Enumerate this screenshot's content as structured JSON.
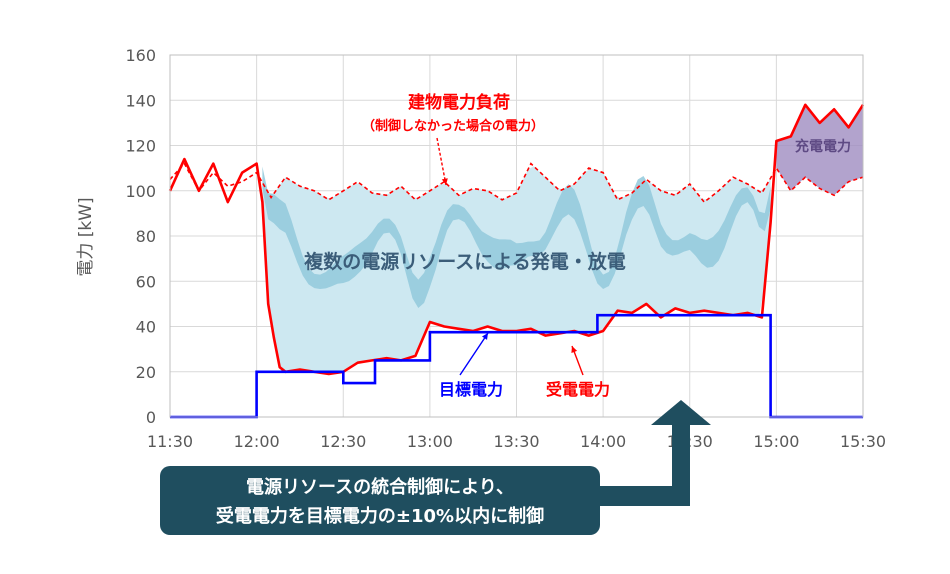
{
  "chart_data": {
    "type": "line",
    "ylabel": "電力 [kW]",
    "xlabel": "",
    "ylim": [
      0,
      160
    ],
    "yticks": [
      "0",
      "20",
      "40",
      "60",
      "80",
      "100",
      "120",
      "140",
      "160"
    ],
    "xlim": [
      "11:30",
      "15:30"
    ],
    "xticks": [
      "11:30",
      "12:00",
      "12:30",
      "13:00",
      "13:30",
      "14:00",
      "14:30",
      "15:00",
      "15:30"
    ],
    "grid": true,
    "series": [
      {
        "name": "建物電力負荷",
        "style": "dashed",
        "color": "#ff0000",
        "x": [
          "11:30",
          "11:35",
          "11:40",
          "11:45",
          "11:50",
          "11:55",
          "12:00",
          "12:05",
          "12:10",
          "12:15",
          "12:20",
          "12:25",
          "12:30",
          "12:35",
          "12:40",
          "12:45",
          "12:50",
          "12:55",
          "13:00",
          "13:05",
          "13:10",
          "13:15",
          "13:20",
          "13:25",
          "13:30",
          "13:35",
          "13:40",
          "13:45",
          "13:50",
          "13:55",
          "14:00",
          "14:05",
          "14:10",
          "14:15",
          "14:20",
          "14:25",
          "14:30",
          "14:35",
          "14:40",
          "14:45",
          "14:50",
          "14:55",
          "15:00",
          "15:05",
          "15:10",
          "15:15",
          "15:20",
          "15:25",
          "15:30"
        ],
        "values": [
          105,
          112,
          100,
          108,
          102,
          104,
          108,
          97,
          106,
          102,
          100,
          96,
          100,
          104,
          99,
          98,
          102,
          96,
          100,
          104,
          98,
          101,
          100,
          96,
          99,
          112,
          106,
          100,
          103,
          110,
          108,
          96,
          99,
          105,
          100,
          98,
          103,
          95,
          100,
          106,
          103,
          99,
          110,
          100,
          106,
          101,
          98,
          104,
          106
        ]
      },
      {
        "name": "受電電力",
        "color": "#ff0000",
        "x": [
          "11:30",
          "11:35",
          "11:40",
          "11:45",
          "11:50",
          "11:55",
          "12:00",
          "12:02",
          "12:04",
          "12:06",
          "12:08",
          "12:10",
          "12:15",
          "12:20",
          "12:25",
          "12:30",
          "12:35",
          "12:40",
          "12:45",
          "12:50",
          "12:55",
          "13:00",
          "13:05",
          "13:10",
          "13:15",
          "13:20",
          "13:25",
          "13:30",
          "13:35",
          "13:40",
          "13:45",
          "13:50",
          "13:55",
          "14:00",
          "14:05",
          "14:10",
          "14:15",
          "14:20",
          "14:25",
          "14:30",
          "14:35",
          "14:40",
          "14:45",
          "14:50",
          "14:55",
          "14:58",
          "15:00",
          "15:05",
          "15:10",
          "15:15",
          "15:20",
          "15:25",
          "15:30"
        ],
        "values": [
          100,
          114,
          100,
          112,
          95,
          108,
          112,
          95,
          50,
          35,
          22,
          20,
          21,
          20,
          19,
          20,
          24,
          25,
          26,
          25,
          27,
          42,
          40,
          39,
          38,
          40,
          38,
          38,
          39,
          36,
          37,
          38,
          36,
          38,
          47,
          46,
          50,
          44,
          48,
          46,
          47,
          46,
          45,
          46,
          44,
          86,
          122,
          124,
          138,
          130,
          136,
          128,
          138
        ]
      },
      {
        "name": "目標電力",
        "color": "#0000ff",
        "x": [
          "11:30",
          "12:00",
          "12:00",
          "12:30",
          "12:30",
          "12:41",
          "12:41",
          "12:52",
          "12:52",
          "13:00",
          "13:00",
          "13:40",
          "13:40",
          "13:58",
          "13:58",
          "14:58",
          "14:58",
          "15:30"
        ],
        "values": [
          0,
          0,
          20,
          20,
          15,
          15,
          25,
          25,
          25,
          25,
          37.5,
          37.5,
          37.5,
          37.5,
          45,
          45,
          0,
          0
        ]
      }
    ],
    "annotations": {
      "building_load_title": "建物電力負荷",
      "building_load_sub": "（制御しなかった場合の電力）",
      "band_label": "複数の電源リソースによる発電・放電",
      "target_label": "目標電力",
      "received_label": "受電電力",
      "charge_label": "充電電力"
    },
    "colors": {
      "band_light": "#cde8f1",
      "band_mid": "#92c9dc",
      "charge_fill": "#9f8cc0",
      "callout_fill": "#1f4e5f"
    }
  },
  "callout": {
    "line1": "電源リソースの統合制御により、",
    "line2": "受電電力を目標電力の±10%以内に制御"
  }
}
